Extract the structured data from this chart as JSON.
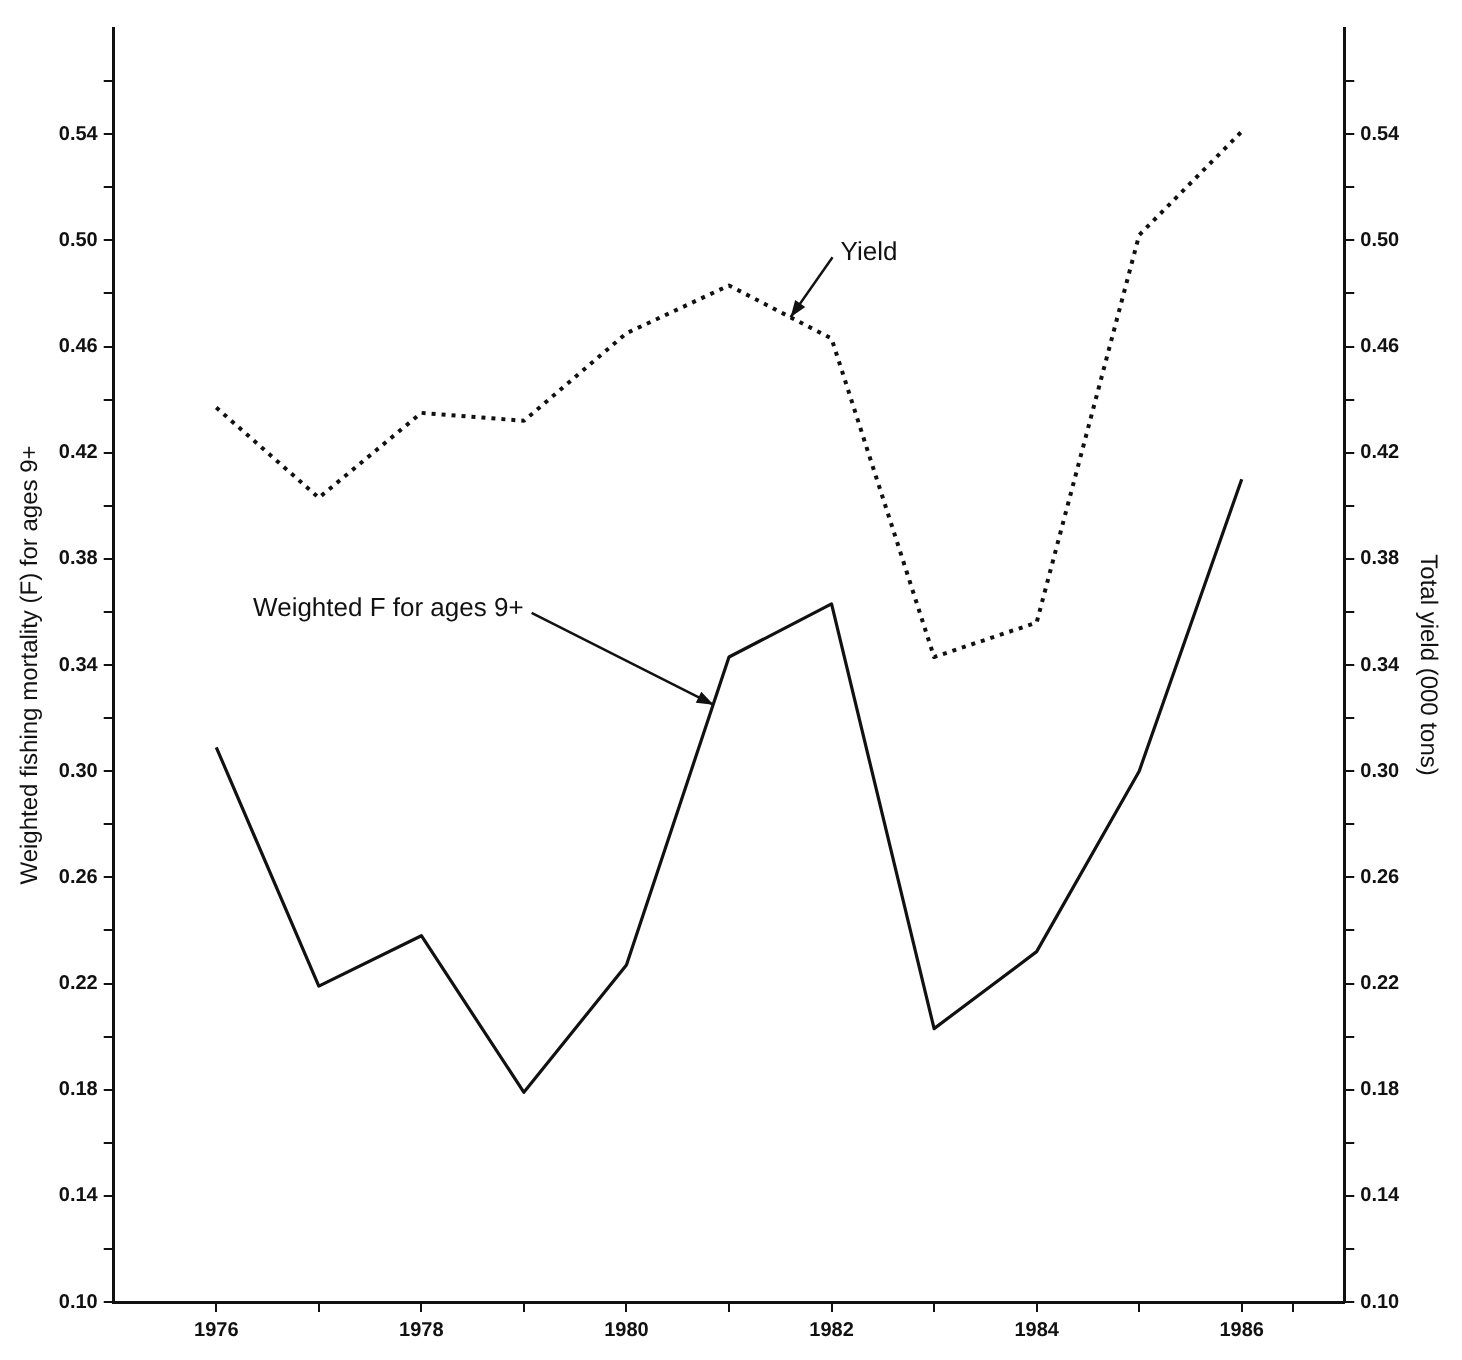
{
  "chart_data": {
    "type": "line",
    "ylabel": "Weighted fishing mortality (F) for ages 9+",
    "y2label": "Total yield (000 tons)",
    "x": [
      1976,
      1977,
      1978,
      1979,
      1980,
      1981,
      1982,
      1983,
      1984,
      1985,
      1986
    ],
    "xlim": [
      1975,
      1987
    ],
    "xticks": [
      1976,
      {
        "value": 1977,
        "label": null
      },
      1978,
      {
        "value": 1979,
        "label": null
      },
      1980,
      {
        "value": 1981,
        "label": null
      },
      1982,
      {
        "value": 1983,
        "label": null
      },
      1984,
      {
        "value": 1985,
        "label": null
      },
      1986,
      {
        "value": 1986.5,
        "label": null
      }
    ],
    "ylim": [
      0.1,
      0.58
    ],
    "yticks": [
      {
        "value": 0.1,
        "label": "0.10"
      },
      {
        "value": 0.12,
        "label": null
      },
      0.14,
      {
        "value": 0.16,
        "label": null
      },
      0.18,
      {
        "value": 0.2,
        "label": null
      },
      0.22,
      {
        "value": 0.24,
        "label": null
      },
      0.26,
      {
        "value": 0.28,
        "label": null
      },
      {
        "value": 0.3,
        "label": "0.30"
      },
      {
        "value": 0.32,
        "label": null
      },
      0.34,
      {
        "value": 0.36,
        "label": null
      },
      0.38,
      {
        "value": 0.4,
        "label": null
      },
      0.42,
      {
        "value": 0.44,
        "label": null
      },
      0.46,
      {
        "value": 0.48,
        "label": null
      },
      {
        "value": 0.5,
        "label": "0.50"
      },
      {
        "value": 0.52,
        "label": null
      },
      0.54,
      {
        "value": 0.56,
        "label": null
      }
    ],
    "y2lim": [
      0.1,
      0.58
    ],
    "y2ticks": [
      {
        "value": 0.1,
        "label": "0.10"
      },
      {
        "value": 0.12,
        "label": null
      },
      0.14,
      {
        "value": 0.16,
        "label": null
      },
      0.18,
      {
        "value": 0.2,
        "label": null
      },
      0.22,
      {
        "value": 0.24,
        "label": null
      },
      0.26,
      {
        "value": 0.28,
        "label": null
      },
      {
        "value": 0.3,
        "label": "0.30"
      },
      {
        "value": 0.32,
        "label": null
      },
      0.34,
      {
        "value": 0.36,
        "label": null
      },
      0.38,
      {
        "value": 0.4,
        "label": null
      },
      0.42,
      {
        "value": 0.44,
        "label": null
      },
      0.46,
      {
        "value": 0.48,
        "label": null
      },
      {
        "value": 0.5,
        "label": "0.50"
      },
      {
        "value": 0.52,
        "label": null
      },
      0.54,
      {
        "value": 0.56,
        "label": null
      }
    ],
    "series": [
      {
        "color": "#111111",
        "line_style": "dotted",
        "axis": "y2",
        "values": [
          0.437,
          0.403,
          0.435,
          0.432,
          0.465,
          0.483,
          0.463,
          0.343,
          0.356,
          0.502,
          0.541
        ]
      },
      {
        "color": "#111111",
        "line_style": "solid",
        "values": [
          0.309,
          0.219,
          0.238,
          0.179,
          0.227,
          0.343,
          0.363,
          0.203,
          0.232,
          0.3,
          0.41
        ]
      }
    ],
    "annotations": [
      {
        "text": "Yield",
        "x": 1981.6,
        "y": 0.471
      },
      {
        "text": "Weighted F for ages 9+",
        "x": 1980.85,
        "y": 0.325
      }
    ],
    "grid": false,
    "legend": false,
    "marker": "none"
  }
}
